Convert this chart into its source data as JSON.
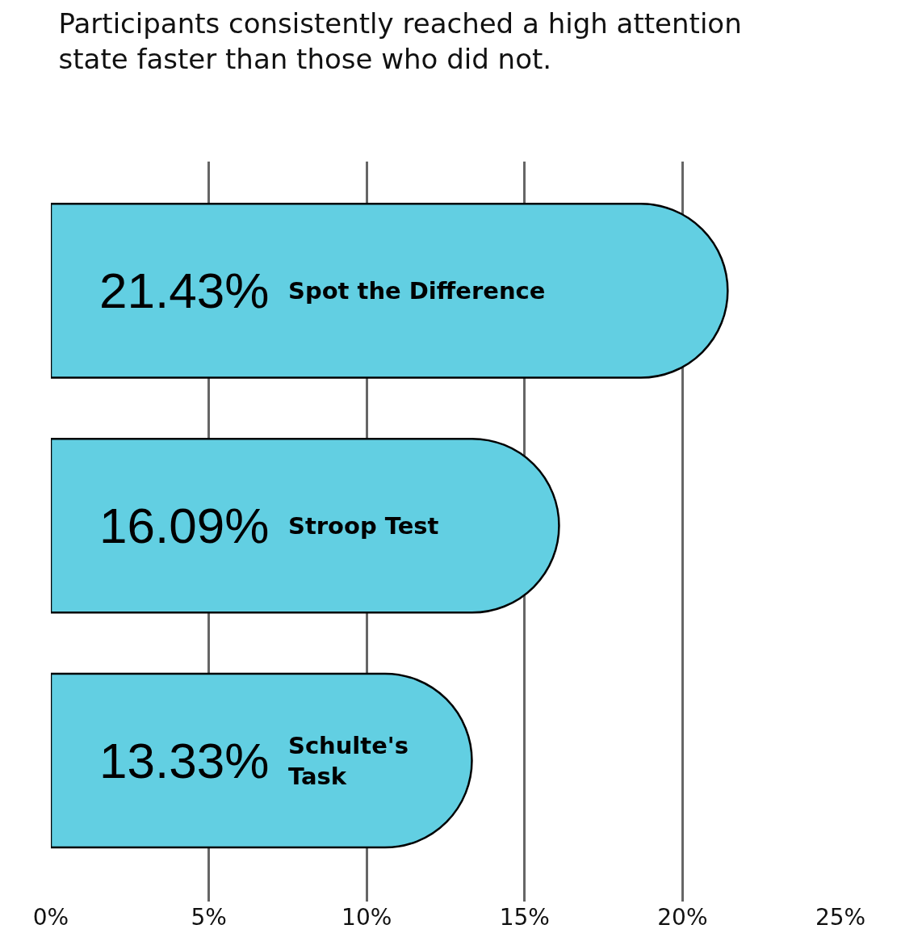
{
  "chart_data": {
    "type": "bar",
    "orientation": "horizontal",
    "title": "Participants consistently reached a high attention state faster than those who did not.",
    "categories": [
      "Spot the Difference",
      "Stroop Test",
      "Schulte's Task"
    ],
    "values": [
      21.43,
      16.09,
      13.33
    ],
    "value_labels": [
      "21.43%",
      "16.09%",
      "13.33%"
    ],
    "color": "#62cfe2",
    "xlim": [
      0,
      25
    ],
    "xticks": [
      {
        "value": 0,
        "label": "0%"
      },
      {
        "value": 5,
        "label": "5%"
      },
      {
        "value": 10,
        "label": "10%"
      },
      {
        "value": 15,
        "label": "15%"
      },
      {
        "value": 20,
        "label": "20%"
      },
      {
        "value": 25,
        "label": "25%"
      }
    ],
    "grid": "x",
    "tick_labels": "x",
    "legend": false
  }
}
